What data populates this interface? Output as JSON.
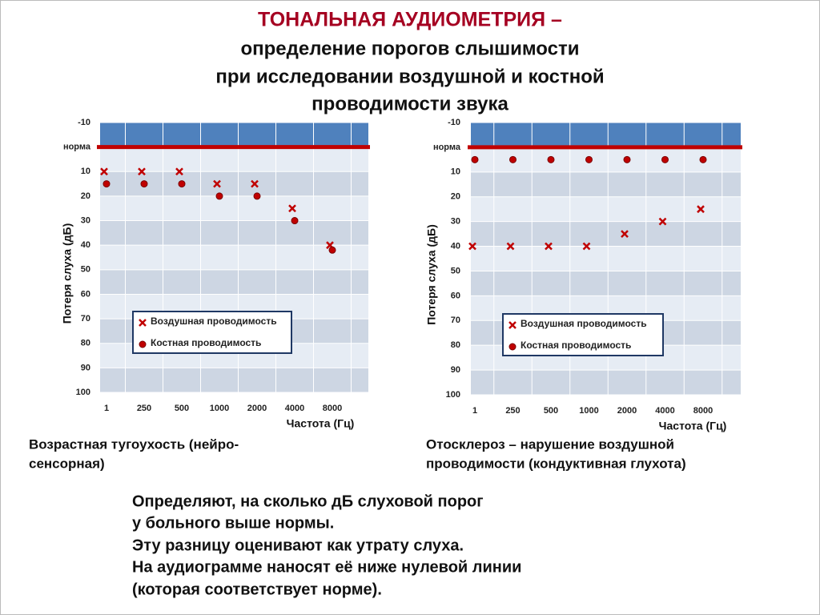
{
  "title": [
    "ТОНАЛЬНАЯ АУДИОМЕТРИЯ –",
    "определение порогов слышимости",
    "при исследовании воздушной и костной",
    "проводимости звука"
  ],
  "text": [
    "Определяют, на сколько дБ слуховой порог",
    "у больного выше нормы.",
    "Эту разницу оценивают как утрату слуха.",
    "На аудиограмме наносят её ниже нулевой линии",
    "(которая соответствует норме)."
  ],
  "chart_data": [
    {
      "type": "scatter",
      "caption": [
        "Возрастная тугоухость (нейро-",
        "сенсорная)"
      ],
      "x_label": "Частота (Гц)",
      "y_label": "Потеря слуха  (дБ)",
      "categories": [
        "1",
        "250",
        "500",
        "1000",
        "2000",
        "4000",
        "8000"
      ],
      "series": [
        {
          "name": "Воздушная проводимость",
          "color": "#c00000",
          "marker": "x",
          "values": [
            10,
            10,
            10,
            15,
            15,
            25,
            40
          ]
        },
        {
          "name": "Костная проводимость",
          "color": "#c00000",
          "marker": "o",
          "values": [
            15,
            15,
            15,
            20,
            20,
            30,
            42
          ]
        }
      ],
      "ylim": [
        -10,
        100
      ],
      "y_inverted": true,
      "yticks": [
        -10,
        {
          "value": 0,
          "label": "норма"
        },
        10,
        20,
        30,
        40,
        50,
        60,
        70,
        80,
        90,
        100
      ],
      "grid": true,
      "norm_color": "#c00000"
    },
    {
      "type": "scatter",
      "caption": [
        "Отосклероз – нарушение воздушной",
        "проводимости  (кондуктивная глухота)"
      ],
      "x_label": "Частота (Гц)",
      "y_label": "Потеря слуха  (дБ)",
      "categories": [
        "1",
        "250",
        "500",
        "1000",
        "2000",
        "4000",
        "8000"
      ],
      "series": [
        {
          "name": "Воздушная проводимость",
          "color": "#c00000",
          "marker": "x",
          "values": [
            40,
            40,
            40,
            40,
            35,
            30,
            25
          ]
        },
        {
          "name": "Костная проводимость",
          "color": "#c00000",
          "marker": "o",
          "values": [
            5,
            5,
            5,
            5,
            5,
            5,
            5
          ]
        }
      ],
      "ylim": [
        -10,
        100
      ],
      "y_inverted": true,
      "yticks": [
        -10,
        {
          "value": 0,
          "label": "норма"
        },
        10,
        20,
        30,
        40,
        50,
        60,
        70,
        80,
        90,
        100
      ],
      "grid": true,
      "norm_color": "#c00000"
    }
  ]
}
